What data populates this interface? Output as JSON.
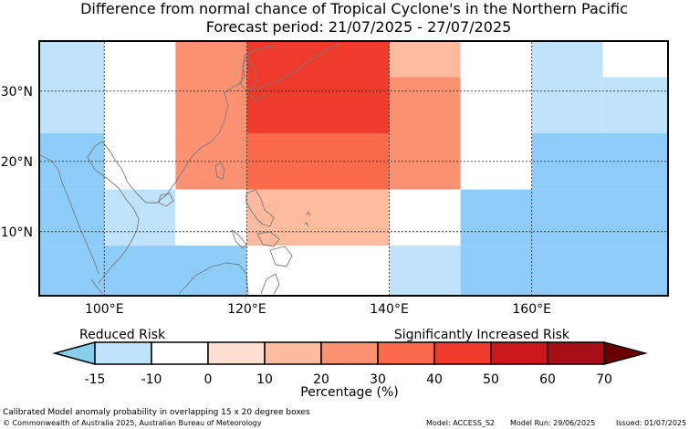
{
  "title_line1": "Difference from normal chance of Tropical Cyclone's in the Northern Pacific",
  "title_line2": "Forecast period: 21/07/2025 - 27/07/2025",
  "map": {
    "lon_range": [
      91,
      179
    ],
    "lat_range": [
      1,
      37
    ],
    "lon_ticks": [
      100,
      120,
      140,
      160
    ],
    "lon_tick_labels": [
      "100°E",
      "120°E",
      "140°E",
      "160°E"
    ],
    "lat_ticks": [
      10,
      20,
      30
    ],
    "lat_tick_labels": [
      "10°N",
      "20°N",
      "30°N"
    ],
    "grid": "dashed",
    "background_color": "#ffffff",
    "cells": [
      {
        "lon": [
          91,
          100
        ],
        "lat": [
          24,
          37
        ],
        "value": -10
      },
      {
        "lon": [
          100,
          110
        ],
        "lat": [
          32,
          37
        ],
        "value": 0
      },
      {
        "lon": [
          100,
          110
        ],
        "lat": [
          24,
          32
        ],
        "value": 0
      },
      {
        "lon": [
          110,
          120
        ],
        "lat": [
          24,
          37
        ],
        "value": 20
      },
      {
        "lon": [
          120,
          140
        ],
        "lat": [
          24,
          37
        ],
        "value": 40
      },
      {
        "lon": [
          140,
          150
        ],
        "lat": [
          32,
          37
        ],
        "value": 10
      },
      {
        "lon": [
          140,
          150
        ],
        "lat": [
          24,
          32
        ],
        "value": 20
      },
      {
        "lon": [
          150,
          160
        ],
        "lat": [
          24,
          37
        ],
        "value": 0
      },
      {
        "lon": [
          160,
          170
        ],
        "lat": [
          24,
          37
        ],
        "value": -10
      },
      {
        "lon": [
          170,
          179
        ],
        "lat": [
          32,
          37
        ],
        "value": 0
      },
      {
        "lon": [
          170,
          179
        ],
        "lat": [
          24,
          32
        ],
        "value": -10
      },
      {
        "lon": [
          91,
          100
        ],
        "lat": [
          16,
          24
        ],
        "value": -15
      },
      {
        "lon": [
          100,
          110
        ],
        "lat": [
          16,
          24
        ],
        "value": 0
      },
      {
        "lon": [
          110,
          120
        ],
        "lat": [
          16,
          24
        ],
        "value": 20
      },
      {
        "lon": [
          120,
          140
        ],
        "lat": [
          16,
          24
        ],
        "value": 30
      },
      {
        "lon": [
          140,
          150
        ],
        "lat": [
          16,
          24
        ],
        "value": 20
      },
      {
        "lon": [
          150,
          160
        ],
        "lat": [
          16,
          24
        ],
        "value": 0
      },
      {
        "lon": [
          160,
          179
        ],
        "lat": [
          16,
          24
        ],
        "value": -15
      },
      {
        "lon": [
          91,
          100
        ],
        "lat": [
          8,
          16
        ],
        "value": -15
      },
      {
        "lon": [
          100,
          110
        ],
        "lat": [
          8,
          16
        ],
        "value": -10
      },
      {
        "lon": [
          110,
          120
        ],
        "lat": [
          8,
          16
        ],
        "value": 0
      },
      {
        "lon": [
          120,
          140
        ],
        "lat": [
          8,
          16
        ],
        "value": 10
      },
      {
        "lon": [
          140,
          150
        ],
        "lat": [
          8,
          16
        ],
        "value": 0
      },
      {
        "lon": [
          150,
          179
        ],
        "lat": [
          8,
          16
        ],
        "value": -15
      },
      {
        "lon": [
          91,
          120
        ],
        "lat": [
          1,
          8
        ],
        "value": -15
      },
      {
        "lon": [
          120,
          140
        ],
        "lat": [
          1,
          8
        ],
        "value": 0
      },
      {
        "lon": [
          140,
          150
        ],
        "lat": [
          1,
          8
        ],
        "value": -10
      },
      {
        "lon": [
          150,
          179
        ],
        "lat": [
          1,
          8
        ],
        "value": -15
      }
    ]
  },
  "colorbar": {
    "left_label": "Reduced Risk",
    "right_label": "Significantly Increased Risk",
    "axis_label": "Percentage (%)",
    "ticks": [
      -15,
      -10,
      0,
      10,
      20,
      30,
      40,
      50,
      60,
      70
    ],
    "tick_labels": [
      "-15",
      "-10",
      "0",
      "10",
      "20",
      "30",
      "40",
      "50",
      "60",
      "70"
    ],
    "under_color": "#87ceeb",
    "over_color": "#6b0000",
    "colors": [
      "#bfe3fb",
      "#ffffff",
      "#fee0d2",
      "#fcbb9f",
      "#fc9272",
      "#fb6a4a",
      "#ef3b2c",
      "#cb181d",
      "#a50f15"
    ]
  },
  "value_colors": {
    "-15": "#8ecdf9",
    "-10": "#bfe3fb",
    "0": "#ffffff",
    "10": "#fcbb9f",
    "20": "#fc9272",
    "30": "#fb6a4a",
    "40": "#ef3b2c"
  },
  "footer": {
    "description": "Calibrated Model anomaly probability in overlapping 15 x 20 degree boxes",
    "copyright": "© Commonwealth of Australia 2025, Australian Bureau of Meteorology",
    "model": "Model: ACCESS_S2",
    "model_run": "Model Run: 29/06/2025",
    "issued": "Issued: 01/07/2025"
  }
}
